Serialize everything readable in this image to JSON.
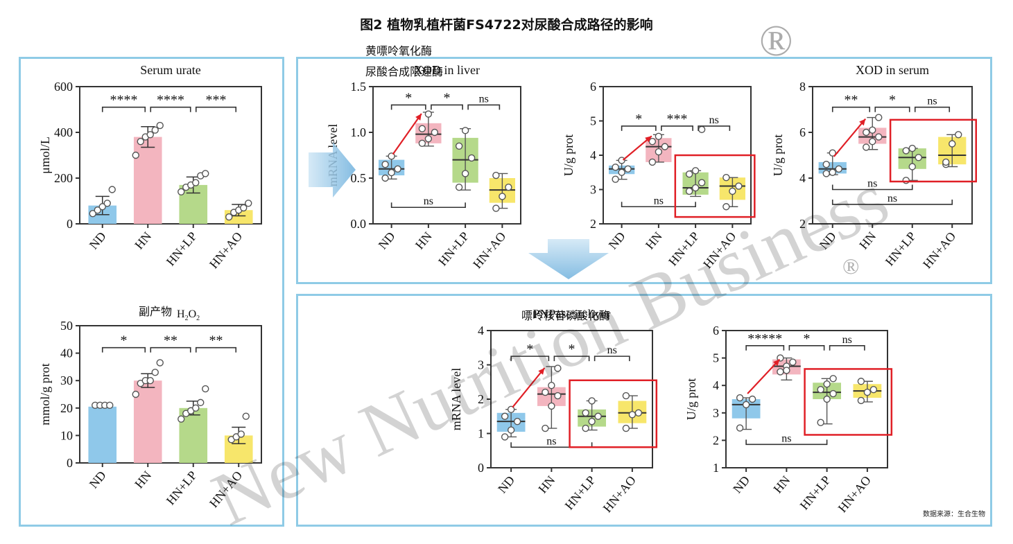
{
  "figure_title": "图2 植物乳植杆菌FS4722对尿酸合成路径的影响",
  "header_lines": [
    "黄嘌呤氧化酶",
    "尿酸合成限速酶"
  ],
  "pnpase_cn": "嘌呤核苷磷酸化酶",
  "h2o2_cn": "副产物",
  "source_note": "数据来源：生合生物",
  "watermark": {
    "text": "New Nutrition Business",
    "registered": "®"
  },
  "colors": {
    "ND": "#8fc8ea",
    "HN": "#f3b5bf",
    "HN+LP": "#b5d98a",
    "HN+AO": "#f7e66b",
    "frame": "#8fcbe6",
    "highlight": "#e01f26",
    "arrow": "#e01f26"
  },
  "chart_data": [
    {
      "id": "serum_urate",
      "type": "bar",
      "title": "Serum urate",
      "ylabel": "μmol/L",
      "categories": [
        "ND",
        "HN",
        "HN+LP",
        "HN+AO"
      ],
      "ylim": [
        0,
        600
      ],
      "yticks": [
        0,
        200,
        400,
        600
      ],
      "values": [
        80,
        380,
        170,
        60
      ],
      "errors": [
        40,
        45,
        35,
        25
      ],
      "points": [
        [
          45,
          60,
          75,
          90,
          150
        ],
        [
          300,
          360,
          380,
          390,
          410,
          430
        ],
        [
          140,
          160,
          170,
          180,
          210,
          220
        ],
        [
          30,
          50,
          60,
          70,
          90
        ]
      ],
      "significance": [
        {
          "from": 0,
          "to": 1,
          "label": "****",
          "y": 510
        },
        {
          "from": 1,
          "to": 2,
          "label": "****",
          "y": 510
        },
        {
          "from": 2,
          "to": 3,
          "label": "***",
          "y": 510
        }
      ]
    },
    {
      "id": "h2o2",
      "type": "bar",
      "title": "H2O2",
      "ylabel": "mmol/g prot",
      "categories": [
        "ND",
        "HN",
        "HN+LP",
        "HN+AO"
      ],
      "ylim": [
        0,
        50
      ],
      "yticks": [
        0,
        10,
        20,
        30,
        40,
        50
      ],
      "values": [
        20.5,
        30,
        20,
        10
      ],
      "errors": [
        0,
        2.5,
        2.5,
        3
      ],
      "points": [
        [
          21,
          21,
          21,
          21
        ],
        [
          25,
          29,
          30,
          30,
          33,
          36.5
        ],
        [
          16,
          18,
          19,
          20,
          22,
          27
        ],
        [
          8.5,
          9.5,
          10.5,
          17
        ]
      ],
      "significance": [
        {
          "from": 0,
          "to": 1,
          "label": "*",
          "y": 42
        },
        {
          "from": 1,
          "to": 2,
          "label": "**",
          "y": 42
        },
        {
          "from": 2,
          "to": 3,
          "label": "**",
          "y": 42
        }
      ]
    },
    {
      "id": "xod_liver_mrna",
      "type": "box",
      "title": "XOD in liver",
      "ylabel": "mRNA level",
      "categories": [
        "ND",
        "HN",
        "HN+LP",
        "HN+AO"
      ],
      "ylim": [
        0,
        1.5
      ],
      "yticks": [
        "0.0",
        "0.5",
        "1.0",
        "1.5"
      ],
      "boxes": [
        {
          "q1": 0.53,
          "med": 0.6,
          "q3": 0.7,
          "min": 0.49,
          "max": 0.74,
          "pts": [
            0.5,
            0.56,
            0.6,
            0.65,
            0.74
          ]
        },
        {
          "q1": 0.88,
          "med": 0.98,
          "q3": 1.1,
          "min": 0.85,
          "max": 1.22,
          "pts": [
            0.88,
            0.93,
            1.0,
            1.04,
            1.2
          ]
        },
        {
          "q1": 0.45,
          "med": 0.7,
          "q3": 0.94,
          "min": 0.37,
          "max": 1.04,
          "pts": [
            0.4,
            0.55,
            0.72,
            0.85,
            1.02
          ]
        },
        {
          "q1": 0.23,
          "med": 0.37,
          "q3": 0.5,
          "min": 0.17,
          "max": 0.55,
          "pts": [
            0.17,
            0.3,
            0.4,
            0.53
          ]
        }
      ],
      "significance": [
        {
          "from": 0,
          "to": 1,
          "label": "*",
          "y": 1.3
        },
        {
          "from": 1,
          "to": 2,
          "label": "*",
          "y": 1.3
        },
        {
          "from": 2,
          "to": 3,
          "label": "ns",
          "y": 1.3
        }
      ],
      "ns_lower": [
        {
          "from": 0,
          "to": 2,
          "label": "ns",
          "y": 0.18
        }
      ]
    },
    {
      "id": "xod_liver_ug",
      "type": "box",
      "title": "",
      "ylabel": "U/g prot",
      "categories": [
        "ND",
        "HN",
        "HN+LP",
        "HN+AO"
      ],
      "ylim": [
        2,
        6
      ],
      "yticks": [
        "2",
        "3",
        "4",
        "5",
        "6"
      ],
      "boxes": [
        {
          "q1": 3.45,
          "med": 3.6,
          "q3": 3.7,
          "min": 3.3,
          "max": 3.85,
          "pts": [
            3.3,
            3.5,
            3.6,
            3.65,
            3.85
          ]
        },
        {
          "q1": 3.8,
          "med": 4.25,
          "q3": 4.5,
          "min": 3.8,
          "max": 4.6,
          "pts": [
            3.8,
            4.1,
            4.25,
            4.4,
            4.55
          ]
        },
        {
          "q1": 2.85,
          "med": 3.05,
          "q3": 3.5,
          "min": 2.8,
          "max": 3.55,
          "pts": [
            2.95,
            3.05,
            3.2,
            3.45,
            3.55,
            4.75
          ]
        },
        {
          "q1": 2.7,
          "med": 3.1,
          "q3": 3.35,
          "min": 2.5,
          "max": 3.35,
          "pts": [
            2.5,
            2.95,
            3.1,
            3.35
          ]
        }
      ],
      "significance": [
        {
          "from": 0,
          "to": 1,
          "label": "*",
          "y": 4.85
        },
        {
          "from": 1,
          "to": 2,
          "label": "***",
          "y": 4.85
        },
        {
          "from": 2,
          "to": 3,
          "label": "ns",
          "y": 4.85
        }
      ],
      "ns_lower": [
        {
          "from": 0,
          "to": 2,
          "label": "ns",
          "y": 2.5
        }
      ]
    },
    {
      "id": "xod_serum",
      "type": "box",
      "title": "XOD in serum",
      "ylabel": "U/g prot",
      "categories": [
        "ND",
        "HN",
        "HN+LP",
        "HN+AO"
      ],
      "ylim": [
        2,
        8
      ],
      "yticks": [
        "2",
        "4",
        "6",
        "8"
      ],
      "boxes": [
        {
          "q1": 4.2,
          "med": 4.4,
          "q3": 4.7,
          "min": 4.15,
          "max": 5.1,
          "pts": [
            4.2,
            4.25,
            4.4,
            4.6,
            5.1
          ]
        },
        {
          "q1": 5.5,
          "med": 5.8,
          "q3": 6.2,
          "min": 5.25,
          "max": 6.65,
          "pts": [
            5.35,
            5.6,
            5.8,
            6.0,
            6.1,
            6.65
          ]
        },
        {
          "q1": 4.4,
          "med": 4.9,
          "q3": 5.3,
          "min": 3.9,
          "max": 5.3,
          "pts": [
            3.9,
            4.5,
            4.9,
            5.2,
            5.3
          ]
        },
        {
          "q1": 4.6,
          "med": 5.0,
          "q3": 5.8,
          "min": 4.5,
          "max": 5.9,
          "pts": [
            4.6,
            5.5,
            5.9,
            4.7
          ]
        }
      ],
      "significance": [
        {
          "from": 0,
          "to": 1,
          "label": "**",
          "y": 7.1
        },
        {
          "from": 1,
          "to": 2,
          "label": "*",
          "y": 7.1
        },
        {
          "from": 2,
          "to": 3,
          "label": "ns",
          "y": 7.1
        }
      ],
      "ns_lower": [
        {
          "from": 0,
          "to": 2,
          "label": "ns",
          "y": 3.5
        },
        {
          "from": 0,
          "to": 3,
          "label": "ns",
          "y": 2.85
        }
      ]
    },
    {
      "id": "pnpase_mrna",
      "type": "box",
      "title": "PNPase in liver",
      "ylabel": "mRNA level",
      "categories": [
        "ND",
        "HN",
        "HN+LP",
        "HN+AO"
      ],
      "ylim": [
        0,
        4
      ],
      "yticks": [
        "0",
        "1",
        "2",
        "3",
        "4"
      ],
      "boxes": [
        {
          "q1": 1.05,
          "med": 1.35,
          "q3": 1.6,
          "min": 0.9,
          "max": 1.7,
          "pts": [
            0.9,
            1.1,
            1.35,
            1.5,
            1.7
          ]
        },
        {
          "q1": 1.8,
          "med": 2.15,
          "q3": 2.35,
          "min": 1.15,
          "max": 2.95,
          "pts": [
            1.15,
            1.8,
            2.1,
            2.2,
            2.4,
            2.9
          ]
        },
        {
          "q1": 1.2,
          "med": 1.5,
          "q3": 1.7,
          "min": 1.1,
          "max": 1.95,
          "pts": [
            1.15,
            1.35,
            1.5,
            1.6,
            1.95
          ]
        },
        {
          "q1": 1.3,
          "med": 1.6,
          "q3": 1.95,
          "min": 1.15,
          "max": 2.1,
          "pts": [
            1.15,
            1.55,
            1.6,
            2.1
          ]
        }
      ],
      "significance": [
        {
          "from": 0,
          "to": 1,
          "label": "*",
          "y": 3.25
        },
        {
          "from": 1,
          "to": 2,
          "label": "*",
          "y": 3.25
        },
        {
          "from": 2,
          "to": 3,
          "label": "ns",
          "y": 3.25
        }
      ],
      "ns_lower": [
        {
          "from": 0,
          "to": 2,
          "label": "ns",
          "y": 0.6
        }
      ]
    },
    {
      "id": "pnpase_ug",
      "type": "box",
      "title": "",
      "ylabel": "U/g prot",
      "categories": [
        "ND",
        "HN",
        "HN+LP",
        "HN+AO"
      ],
      "ylim": [
        1,
        6
      ],
      "yticks": [
        "1",
        "2",
        "3",
        "4",
        "5",
        "6"
      ],
      "boxes": [
        {
          "q1": 2.8,
          "med": 3.3,
          "q3": 3.5,
          "min": 2.4,
          "max": 3.55,
          "pts": [
            2.45,
            3.3,
            3.5,
            3.55
          ]
        },
        {
          "q1": 4.4,
          "med": 4.7,
          "q3": 4.95,
          "min": 4.2,
          "max": 5.0,
          "pts": [
            4.5,
            4.7,
            4.85,
            5.0,
            4.55
          ]
        },
        {
          "q1": 3.5,
          "med": 3.75,
          "q3": 4.1,
          "min": 2.6,
          "max": 4.25,
          "pts": [
            2.65,
            3.5,
            3.7,
            3.85,
            4.05,
            4.25
          ]
        },
        {
          "q1": 3.55,
          "med": 3.8,
          "q3": 4.05,
          "min": 3.4,
          "max": 4.15,
          "pts": [
            3.45,
            3.75,
            3.85,
            4.15
          ]
        }
      ],
      "significance": [
        {
          "from": 0,
          "to": 1,
          "label": "*****",
          "y": 5.45
        },
        {
          "from": 1,
          "to": 2,
          "label": "*",
          "y": 5.45
        },
        {
          "from": 2,
          "to": 3,
          "label": "ns",
          "y": 5.45
        }
      ],
      "ns_lower": [
        {
          "from": 0,
          "to": 2,
          "label": "ns",
          "y": 1.85
        }
      ]
    }
  ]
}
